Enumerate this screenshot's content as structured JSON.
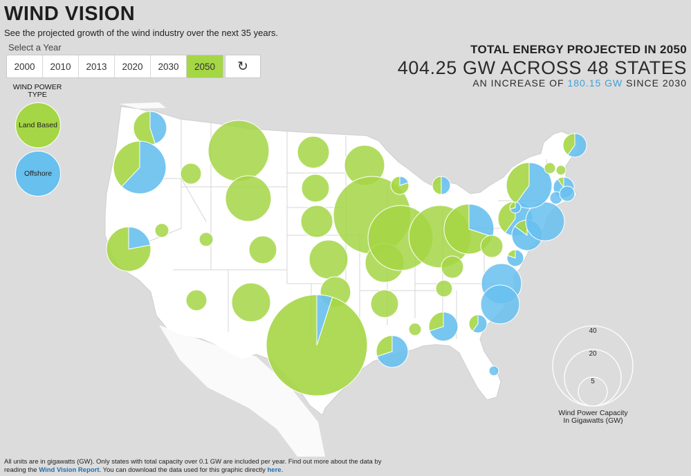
{
  "header": {
    "title": "WIND VISION",
    "subtitle": "See the projected growth of the wind industry over the next 35 years."
  },
  "year_selector": {
    "label": "Select a Year",
    "years": [
      "2000",
      "2010",
      "2013",
      "2020",
      "2030",
      "2050"
    ],
    "selected": "2050",
    "reset_icon": "↻"
  },
  "stats": {
    "heading": "TOTAL ENERGY PROJECTED IN 2050",
    "main": "404.25 GW ACROSS 48 STATES",
    "increase_prefix": "AN INCREASE OF",
    "increase_value": "180.15 GW",
    "increase_suffix": "SINCE 2030"
  },
  "legend": {
    "title_line1": "WIND POWER",
    "title_line2": "TYPE",
    "land_label": "Land Based",
    "offshore_label": "Offshore"
  },
  "scale": {
    "values": [
      "40",
      "20",
      "5"
    ],
    "caption_line1": "Wind Power Capacity",
    "caption_line2": "In Gigawatts (GW)"
  },
  "footer": {
    "text1": "All units are in gigawatts (GW). Only states with total capacity over 0.1 GW are included per year. Find out more about the data by",
    "text2": "reading the",
    "link1": "Wind Vision Report",
    "text3": ". You can download the data used for this graphic directly",
    "link2": "here",
    "text4": "."
  },
  "colors": {
    "land": "#a5d645",
    "offshore": "#67c0ee",
    "selected": "#a5d645",
    "background": "#dcdcdc",
    "map": "#ffffff"
  },
  "map_data": {
    "year": "2050",
    "states": [
      {
        "name": "WA",
        "offshore_frac": 0.45
      },
      {
        "name": "OR",
        "offshore_frac": 0.62
      },
      {
        "name": "CA",
        "offshore_frac": 0.22
      },
      {
        "name": "ID",
        "offshore_frac": 0
      },
      {
        "name": "NV",
        "offshore_frac": 0
      },
      {
        "name": "MT",
        "offshore_frac": 0
      },
      {
        "name": "WY",
        "offshore_frac": 0
      },
      {
        "name": "UT",
        "offshore_frac": 0
      },
      {
        "name": "AZ",
        "offshore_frac": 0
      },
      {
        "name": "CO",
        "offshore_frac": 0
      },
      {
        "name": "NM",
        "offshore_frac": 0
      },
      {
        "name": "ND",
        "offshore_frac": 0
      },
      {
        "name": "SD",
        "offshore_frac": 0
      },
      {
        "name": "NE",
        "offshore_frac": 0
      },
      {
        "name": "KS",
        "offshore_frac": 0
      },
      {
        "name": "OK",
        "offshore_frac": 0
      },
      {
        "name": "TX",
        "offshore_frac": 0.05
      },
      {
        "name": "MN",
        "offshore_frac": 0
      },
      {
        "name": "IA",
        "offshore_frac": 0
      },
      {
        "name": "MO",
        "offshore_frac": 0
      },
      {
        "name": "AR",
        "offshore_frac": 0
      },
      {
        "name": "LA",
        "offshore_frac": 0.7
      },
      {
        "name": "WI",
        "offshore_frac": 0.2
      },
      {
        "name": "IL",
        "offshore_frac": 0
      },
      {
        "name": "MI",
        "offshore_frac": 0.5
      },
      {
        "name": "IN",
        "offshore_frac": 0
      },
      {
        "name": "OH",
        "offshore_frac": 0.3
      },
      {
        "name": "KY",
        "offshore_frac": 0
      },
      {
        "name": "TN",
        "offshore_frac": 0
      },
      {
        "name": "MS",
        "offshore_frac": 0
      },
      {
        "name": "AL",
        "offshore_frac": 0.7
      },
      {
        "name": "GA",
        "offshore_frac": 0.6
      },
      {
        "name": "FL",
        "offshore_frac": 1
      },
      {
        "name": "SC",
        "offshore_frac": 1
      },
      {
        "name": "NC",
        "offshore_frac": 1
      },
      {
        "name": "VA",
        "offshore_frac": 0.8
      },
      {
        "name": "WV",
        "offshore_frac": 0
      },
      {
        "name": "PA",
        "offshore_frac": 0.6
      },
      {
        "name": "MD",
        "offshore_frac": 0.85
      },
      {
        "name": "NJ",
        "offshore_frac": 1
      },
      {
        "name": "NY",
        "offshore_frac": 0.6
      },
      {
        "name": "VT",
        "offshore_frac": 0
      },
      {
        "name": "NH",
        "offshore_frac": 0
      },
      {
        "name": "MA",
        "offshore_frac": 0.9
      },
      {
        "name": "CT",
        "offshore_frac": 1
      },
      {
        "name": "RI",
        "offshore_frac": 1
      },
      {
        "name": "ME",
        "offshore_frac": 0.6
      },
      {
        "name": "DE",
        "offshore_frac": 0.7
      }
    ]
  }
}
